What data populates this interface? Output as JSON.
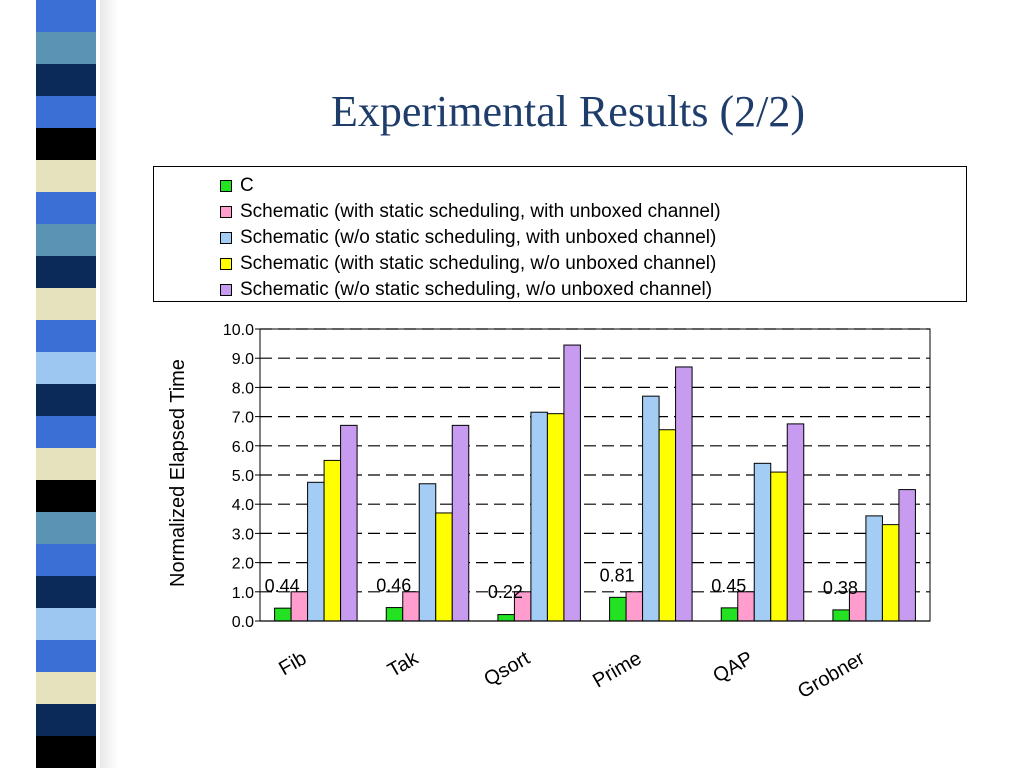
{
  "page": {
    "title": "Experimental Results (2/2)"
  },
  "colors": {
    "stripe": [
      "#3b6fd6",
      "#5b93b5",
      "#0b2a5a",
      "#3b6fd6",
      "#000000",
      "#e5e3bd",
      "#3b6fd6",
      "#5b93b5",
      "#0b2a5a",
      "#e5e3bd",
      "#3b6fd6",
      "#9dc7f0",
      "#0b2a5a",
      "#3b6fd6",
      "#e5e3bd",
      "#000000",
      "#5b93b5",
      "#3b6fd6",
      "#0b2a5a",
      "#9dc7f0",
      "#3b6fd6",
      "#e5e3bd",
      "#0b2a5a",
      "#000000"
    ]
  },
  "chart_data": {
    "type": "bar",
    "categories": [
      "Fib",
      "Tak",
      "Qsort",
      "Prime",
      "QAP",
      "Grobner"
    ],
    "ylabel": "Normalized Elapsed Time",
    "ylim": [
      0,
      10
    ],
    "yticks": [
      "0.0",
      "1.0",
      "2.0",
      "3.0",
      "4.0",
      "5.0",
      "6.0",
      "7.0",
      "8.0",
      "9.0",
      "10.0"
    ],
    "grid": "dashed horizontal",
    "legend_placement": "top",
    "series": [
      {
        "name": "C",
        "color": "#22e222",
        "values": [
          0.44,
          0.46,
          0.22,
          0.81,
          0.45,
          0.38
        ]
      },
      {
        "name": "Schematic (with static scheduling, with unboxed channel)",
        "color": "#ff9dcf",
        "values": [
          1.0,
          1.0,
          1.0,
          1.0,
          1.0,
          1.0
        ]
      },
      {
        "name": "Schematic (w/o static scheduling, with unboxed channel)",
        "color": "#a3cdf5",
        "values": [
          4.75,
          4.7,
          7.15,
          7.7,
          5.4,
          3.6
        ]
      },
      {
        "name": "Schematic (with static scheduling, w/o unboxed channel)",
        "color": "#ffff00",
        "values": [
          5.5,
          3.7,
          7.1,
          6.55,
          5.1,
          3.3
        ]
      },
      {
        "name": "Schematic (w/o static scheduling, w/o unboxed channel)",
        "color": "#c79cf0",
        "values": [
          6.7,
          6.7,
          9.45,
          8.7,
          6.75,
          4.5
        ]
      }
    ],
    "data_labels": [
      "0.44",
      "0.46",
      "0.22",
      "0.81",
      "0.45",
      "0.38"
    ]
  }
}
